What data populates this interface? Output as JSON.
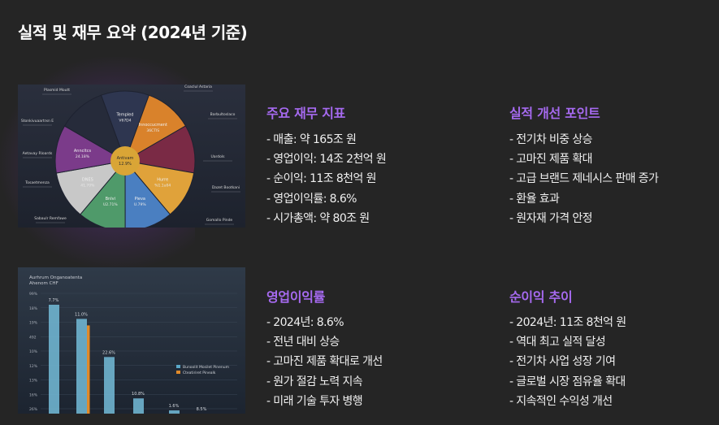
{
  "page": {
    "title": "실적 및 재무 요약 (2024년 기준)"
  },
  "pie_image": {
    "center_label": "Antivam\n12.9%",
    "segments": [
      {
        "label": "Templed",
        "value": "V67D4",
        "color": "#2e3650"
      },
      {
        "label": "Innoccucment",
        "value": "36CTIS",
        "color": "#d9822b"
      },
      {
        "label": "",
        "value": "",
        "color": "#7a2a45"
      },
      {
        "label": "Hurre",
        "value": "%1.1u04",
        "color": "#e0a23a"
      },
      {
        "label": "Pieva",
        "value": "U.79%",
        "color": "#4a7fc1"
      },
      {
        "label": "Bnlvi",
        "value": "U2.71%",
        "color": "#4f9a6a"
      },
      {
        "label": "DNES",
        "value": "41.70%",
        "color": "#c8c8c8"
      },
      {
        "label": "Anncltcs",
        "value": "24.18%",
        "color": "#7b3b8a"
      },
      {
        "label": "",
        "value": "",
        "color": "#262b3a"
      }
    ],
    "callouts": [
      "Plasmid Moutt",
      "Coaclul Astaria",
      "Stonkivuaartrxn E",
      "Barbultoslaco",
      "Aetavay Rloards",
      "Uardols",
      "Tosaetmenza",
      "Dazet Bootkani",
      "Sabaulr Remfawe",
      "Gomallo Pinde"
    ]
  },
  "bar_image": {
    "title_lines": [
      "Aurhrum Onganoatenta",
      "Ahenom CHF"
    ],
    "y_ticks": [
      "99%",
      "18%",
      "19%",
      "492",
      "10%",
      "12%",
      "13%",
      "16%",
      "26%"
    ],
    "bars": [
      {
        "label": "7.7%",
        "value": 100
      },
      {
        "label": "11.0%",
        "value": 87
      },
      {
        "label": "22.6%",
        "value": 52
      },
      {
        "label": "10.8%",
        "value": 14
      },
      {
        "label": "1.6%",
        "value": 3
      },
      {
        "label": "8.5%",
        "value": 0
      }
    ],
    "legend": [
      {
        "label": "Bunoolit Mosilet Pinenum",
        "color": "#5aa8c8"
      },
      {
        "label": "Cteatiriret Pinealk",
        "color": "#e08a2a"
      }
    ]
  },
  "sections": [
    {
      "title": "주요 재무 지표",
      "items": [
        "- 매출: 약 165조 원",
        "- 영업이익: 14조 2천억 원",
        "- 순이익: 11조 8천억 원",
        "- 영업이익률: 8.6%",
        "- 시가총액: 약 80조 원"
      ]
    },
    {
      "title": "실적 개선 포인트",
      "items": [
        "- 전기차 비중 상승",
        "- 고마진 제품 확대",
        "- 고급 브랜드 제네시스 판매 증가",
        "- 환율 효과",
        "- 원자재 가격 안정"
      ]
    },
    {
      "title": "영업이익률",
      "items": [
        "- 2024년: 8.6%",
        "- 전년 대비 상승",
        "- 고마진 제품 확대로 개선",
        "- 원가 절감 노력 지속",
        "- 미래 기술 투자 병행"
      ]
    },
    {
      "title": "순이익 추이",
      "items": [
        "- 2024년: 11조 8천억 원",
        "- 역대 최고 실적 달성",
        "- 전기차 사업 성장 기여",
        "- 글로벌 시장 점유율 확대",
        "- 지속적인 수익성 개선"
      ]
    }
  ]
}
